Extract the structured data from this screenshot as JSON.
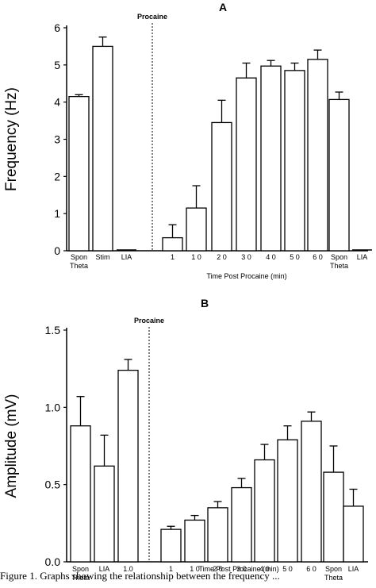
{
  "chart_data": [
    {
      "type": "bar",
      "title": "A",
      "ylabel": "Frequency (Hz)",
      "xlabel": "Time Post Procaine (min)",
      "annotation": "Procaine",
      "ylim": [
        0,
        6
      ],
      "yticks": [
        "0",
        "1",
        "2",
        "3",
        "4",
        "5",
        "6"
      ],
      "grid": false,
      "categories": [
        {
          "line1": "Spon",
          "line2": "Theta"
        },
        {
          "line1": "Stim",
          "line2": ""
        },
        {
          "line1": "LIA",
          "line2": ""
        },
        {
          "line1": "1",
          "line2": ""
        },
        {
          "line1": "1 0",
          "line2": ""
        },
        {
          "line1": "2 0",
          "line2": ""
        },
        {
          "line1": "3 0",
          "line2": ""
        },
        {
          "line1": "4 0",
          "line2": ""
        },
        {
          "line1": "5 0",
          "line2": ""
        },
        {
          "line1": "6 0",
          "line2": ""
        },
        {
          "line1": "Spon",
          "line2": "Theta"
        },
        {
          "line1": "LIA",
          "line2": ""
        }
      ],
      "values": [
        4.15,
        5.5,
        0.0,
        0.35,
        1.15,
        3.45,
        4.65,
        4.97,
        4.85,
        5.15,
        4.07,
        0.0
      ],
      "errors": [
        0.05,
        0.25,
        0.0,
        0.35,
        0.6,
        0.6,
        0.4,
        0.15,
        0.2,
        0.25,
        0.2,
        0.0
      ]
    },
    {
      "type": "bar",
      "title": "B",
      "ylabel": "Amplitude (mV)",
      "xlabel": "Time Post Procaine (min)",
      "annotation": "Procaine",
      "ylim": [
        0,
        1.5
      ],
      "yticks": [
        "0.0",
        "0.5",
        "1.0",
        "1.5"
      ],
      "grid": false,
      "categories": [
        {
          "line1": "Spon",
          "line2": "Theta"
        },
        {
          "line1": "LIA",
          "line2": ""
        },
        {
          "line1": "1.0",
          "line2": ""
        },
        {
          "line1": "1",
          "line2": ""
        },
        {
          "line1": "1 0",
          "line2": ""
        },
        {
          "line1": "2 0",
          "line2": ""
        },
        {
          "line1": "3 0",
          "line2": ""
        },
        {
          "line1": "4 0",
          "line2": ""
        },
        {
          "line1": "5 0",
          "line2": ""
        },
        {
          "line1": "6 0",
          "line2": ""
        },
        {
          "line1": "Spon",
          "line2": "Theta"
        },
        {
          "line1": "LIA",
          "line2": ""
        }
      ],
      "values": [
        0.88,
        0.62,
        1.24,
        0.21,
        0.27,
        0.35,
        0.48,
        0.66,
        0.79,
        0.91,
        0.58,
        0.36
      ],
      "errors": [
        0.19,
        0.2,
        0.07,
        0.02,
        0.03,
        0.04,
        0.06,
        0.1,
        0.09,
        0.06,
        0.17,
        0.11
      ]
    }
  ],
  "caption": "Figure 1.   Graphs showing the relationship between the frequency ..."
}
